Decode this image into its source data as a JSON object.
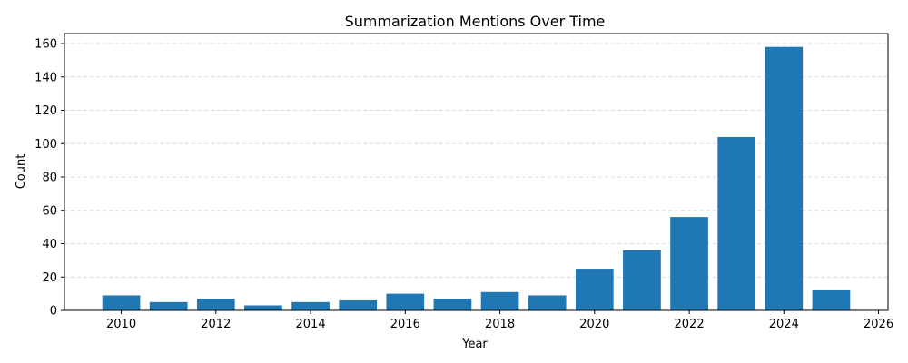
{
  "chart_data": {
    "type": "bar",
    "title": "Summarization Mentions Over Time",
    "xlabel": "Year",
    "ylabel": "Count",
    "x": [
      2010,
      2011,
      2012,
      2013,
      2014,
      2015,
      2016,
      2017,
      2018,
      2019,
      2020,
      2021,
      2022,
      2023,
      2024,
      2025
    ],
    "values": [
      9,
      5,
      7,
      3,
      5,
      6,
      10,
      7,
      11,
      9,
      25,
      36,
      56,
      104,
      158,
      12
    ],
    "xlim": [
      2008.8,
      2026.2
    ],
    "ylim": [
      0,
      166
    ],
    "xticks": [
      2010,
      2012,
      2014,
      2016,
      2018,
      2020,
      2022,
      2024,
      2026
    ],
    "yticks": [
      0,
      20,
      40,
      60,
      80,
      100,
      120,
      140,
      160
    ],
    "grid": "y-dashed",
    "bar_color": "#1f77b4"
  }
}
